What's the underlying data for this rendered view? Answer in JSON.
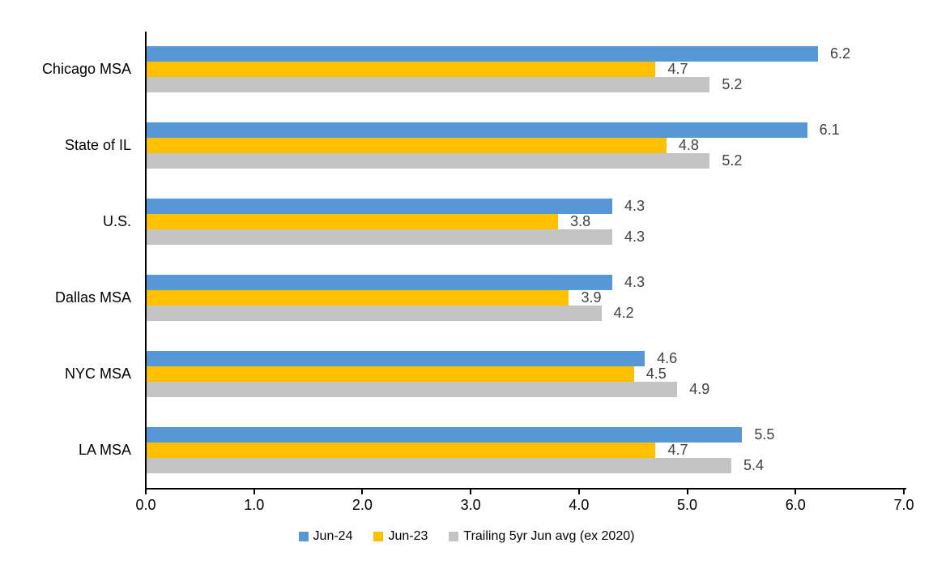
{
  "chart_data": {
    "type": "bar",
    "orientation": "horizontal",
    "title": "",
    "categories": [
      "Chicago MSA",
      "State of IL",
      "U.S.",
      "Dallas MSA",
      "NYC MSA",
      "LA MSA"
    ],
    "series": [
      {
        "name": "Jun-24",
        "color": "#5598D5",
        "values": [
          6.2,
          6.1,
          4.3,
          4.3,
          4.6,
          5.5
        ]
      },
      {
        "name": "Jun-23",
        "color": "#FFC000",
        "values": [
          4.7,
          4.8,
          3.8,
          3.9,
          4.5,
          4.7
        ]
      },
      {
        "name": "Trailing 5yr Jun avg (ex 2020)",
        "color": "#C4C4C4",
        "values": [
          5.2,
          5.2,
          4.3,
          4.2,
          4.9,
          5.4
        ]
      }
    ],
    "data_labels_shown": true,
    "data_label_format": "0.0",
    "xlim": [
      0,
      7
    ],
    "x_ticks": [
      "0.0",
      "1.0",
      "2.0",
      "3.0",
      "4.0",
      "5.0",
      "6.0",
      "7.0"
    ],
    "grid": false,
    "legend_position": "bottom"
  },
  "colors": {
    "background": "#FFFFFF",
    "axis": "#000000",
    "category_text": "#000000",
    "tick_text": "#000000",
    "data_label_text": "#404040"
  }
}
